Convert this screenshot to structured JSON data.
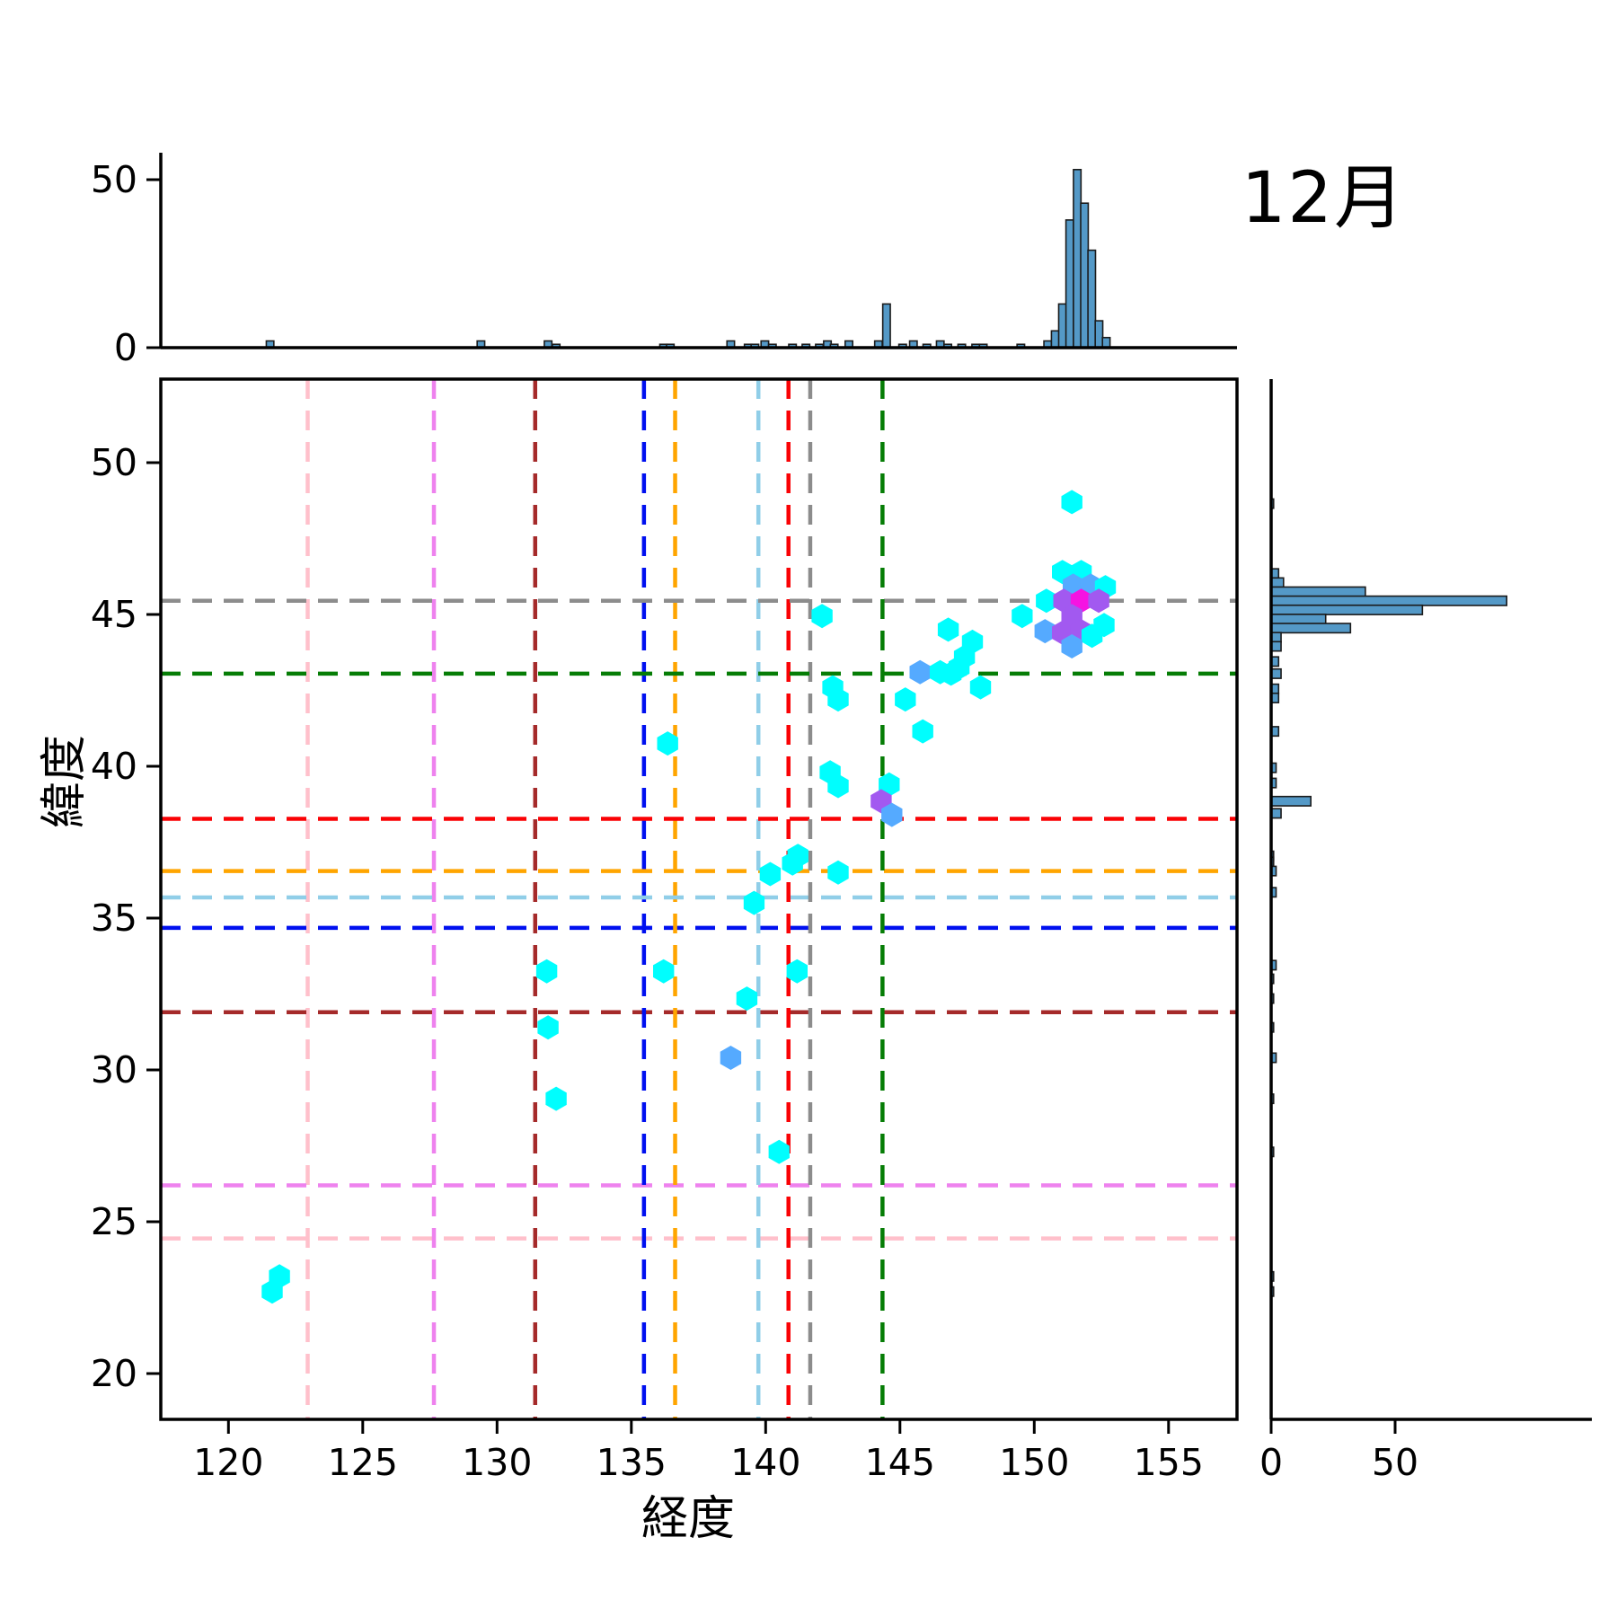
{
  "title": "12月",
  "axes": {
    "xlabel": "経度",
    "ylabel": "緯度",
    "x_ticks": [
      120,
      125,
      130,
      135,
      140,
      145,
      150,
      155
    ],
    "y_ticks": [
      20,
      25,
      30,
      35,
      40,
      45,
      50
    ],
    "top_hist_ticks": [
      0,
      50
    ],
    "right_hist_ticks": [
      0,
      50
    ]
  },
  "chart_data": {
    "type": "scatter",
    "subtype": "hexbin-jointplot-with-marginal-histograms",
    "title": "12月",
    "xlabel": "経度",
    "ylabel": "緯度",
    "xlim": [
      117.5,
      157.6
    ],
    "ylim": [
      18.5,
      52.8
    ],
    "grid": false,
    "legend": "none",
    "hex_colormap": "cool",
    "hex_level_colors": {
      "1": "#00FEFE",
      "2": "#55AAFF",
      "3": "#A259F0",
      "4": "#F513E2"
    },
    "histogram_color": "#5499C7",
    "histogram_edge_color": "#1b1b1b",
    "points_lon_lat_level": [
      [
        121.63,
        22.7,
        1
      ],
      [
        121.9,
        23.2,
        1
      ],
      [
        132.2,
        29.05,
        1
      ],
      [
        131.9,
        31.4,
        1
      ],
      [
        131.85,
        33.25,
        1
      ],
      [
        136.2,
        33.25,
        1
      ],
      [
        139.3,
        32.35,
        1
      ],
      [
        141.17,
        33.25,
        1
      ],
      [
        138.7,
        30.4,
        2
      ],
      [
        140.5,
        27.3,
        1
      ],
      [
        139.57,
        35.5,
        1
      ],
      [
        140.17,
        36.45,
        1
      ],
      [
        141.0,
        36.8,
        1
      ],
      [
        141.2,
        37.05,
        1
      ],
      [
        142.7,
        36.5,
        1
      ],
      [
        136.35,
        40.75,
        1
      ],
      [
        142.4,
        39.8,
        1
      ],
      [
        142.7,
        39.35,
        1
      ],
      [
        144.6,
        39.4,
        1
      ],
      [
        144.3,
        38.85,
        3
      ],
      [
        144.7,
        38.4,
        2
      ],
      [
        145.85,
        41.15,
        1
      ],
      [
        142.1,
        44.95,
        1
      ],
      [
        142.5,
        42.6,
        1
      ],
      [
        142.7,
        42.2,
        1
      ],
      [
        145.2,
        42.2,
        1
      ],
      [
        145.75,
        43.1,
        2
      ],
      [
        146.5,
        43.1,
        1
      ],
      [
        146.9,
        43.05,
        1
      ],
      [
        147.2,
        43.25,
        1
      ],
      [
        147.4,
        43.6,
        1
      ],
      [
        147.7,
        44.1,
        1
      ],
      [
        146.8,
        44.5,
        1
      ],
      [
        148.0,
        42.6,
        1
      ],
      [
        151.4,
        48.7,
        1
      ],
      [
        149.55,
        44.95,
        1
      ],
      [
        150.4,
        44.45,
        2
      ],
      [
        150.45,
        45.45,
        1
      ],
      [
        151.05,
        46.4,
        1
      ],
      [
        151.75,
        46.4,
        1
      ],
      [
        151.45,
        45.95,
        2
      ],
      [
        152.1,
        45.95,
        2
      ],
      [
        152.65,
        45.9,
        1
      ],
      [
        151.1,
        45.45,
        3
      ],
      [
        151.75,
        45.45,
        4
      ],
      [
        152.4,
        45.45,
        3
      ],
      [
        151.4,
        44.95,
        3
      ],
      [
        152.6,
        44.65,
        1
      ],
      [
        151.05,
        44.4,
        3
      ],
      [
        151.75,
        44.45,
        3
      ],
      [
        152.15,
        44.3,
        1
      ],
      [
        151.4,
        43.95,
        2
      ]
    ],
    "reference_lines": [
      {
        "name": "pink",
        "color": "#FFC0CB",
        "lon": 122.95,
        "lat": 24.45
      },
      {
        "name": "violet",
        "color": "#EE82EE",
        "lon": 127.65,
        "lat": 26.2
      },
      {
        "name": "darkred",
        "color": "#A52A2A",
        "lon": 131.42,
        "lat": 31.9
      },
      {
        "name": "blue",
        "color": "#0010F0",
        "lon": 135.47,
        "lat": 34.68
      },
      {
        "name": "orange",
        "color": "#FFA500",
        "lon": 136.63,
        "lat": 36.55
      },
      {
        "name": "skyblue",
        "color": "#90CEE8",
        "lon": 139.73,
        "lat": 35.68
      },
      {
        "name": "red",
        "color": "#FA0205",
        "lon": 140.85,
        "lat": 38.27
      },
      {
        "name": "gray",
        "color": "#8C8C8C",
        "lon": 141.66,
        "lat": 45.45
      },
      {
        "name": "green",
        "color": "#067D06",
        "lon": 144.35,
        "lat": 43.05
      }
    ],
    "top_histogram": {
      "axis": "longitude",
      "value_ticks": [
        0,
        50
      ],
      "value_max_visible": 59,
      "bars_lon_count": [
        [
          121.55,
          2
        ],
        [
          129.4,
          2
        ],
        [
          131.9,
          2
        ],
        [
          132.2,
          1
        ],
        [
          136.2,
          1
        ],
        [
          136.45,
          1
        ],
        [
          138.7,
          2
        ],
        [
          139.35,
          1
        ],
        [
          139.6,
          1
        ],
        [
          139.97,
          2
        ],
        [
          140.25,
          1
        ],
        [
          141.0,
          1
        ],
        [
          141.5,
          1
        ],
        [
          142.0,
          1
        ],
        [
          142.3,
          2
        ],
        [
          142.55,
          1
        ],
        [
          143.1,
          2
        ],
        [
          144.2,
          2
        ],
        [
          144.5,
          13
        ],
        [
          145.1,
          1
        ],
        [
          145.5,
          2
        ],
        [
          146.0,
          1
        ],
        [
          146.5,
          2
        ],
        [
          146.78,
          1
        ],
        [
          147.3,
          1
        ],
        [
          147.82,
          1
        ],
        [
          148.1,
          1
        ],
        [
          149.5,
          1
        ],
        [
          150.5,
          2
        ],
        [
          150.78,
          5
        ],
        [
          151.05,
          13
        ],
        [
          151.32,
          38
        ],
        [
          151.6,
          53
        ],
        [
          151.87,
          43
        ],
        [
          152.14,
          29
        ],
        [
          152.41,
          8
        ],
        [
          152.68,
          3
        ]
      ]
    },
    "right_histogram": {
      "axis": "latitude",
      "value_ticks": [
        0,
        50
      ],
      "value_max_visible": 128,
      "bars_lat_count": [
        [
          48.65,
          1
        ],
        [
          46.35,
          3
        ],
        [
          46.05,
          5
        ],
        [
          45.75,
          38
        ],
        [
          45.45,
          95
        ],
        [
          45.15,
          61
        ],
        [
          44.85,
          22
        ],
        [
          44.55,
          32
        ],
        [
          44.25,
          4
        ],
        [
          43.95,
          4
        ],
        [
          43.45,
          3
        ],
        [
          43.05,
          4
        ],
        [
          42.55,
          3
        ],
        [
          42.25,
          3
        ],
        [
          41.15,
          3
        ],
        [
          39.95,
          2
        ],
        [
          39.45,
          2
        ],
        [
          38.85,
          16
        ],
        [
          38.45,
          4
        ],
        [
          37.05,
          1
        ],
        [
          36.85,
          1
        ],
        [
          36.55,
          2
        ],
        [
          35.85,
          2
        ],
        [
          33.45,
          2
        ],
        [
          33.0,
          1
        ],
        [
          32.35,
          1
        ],
        [
          31.4,
          1
        ],
        [
          30.4,
          2
        ],
        [
          29.05,
          1
        ],
        [
          27.3,
          1
        ],
        [
          23.2,
          1
        ],
        [
          22.7,
          1
        ]
      ]
    }
  }
}
